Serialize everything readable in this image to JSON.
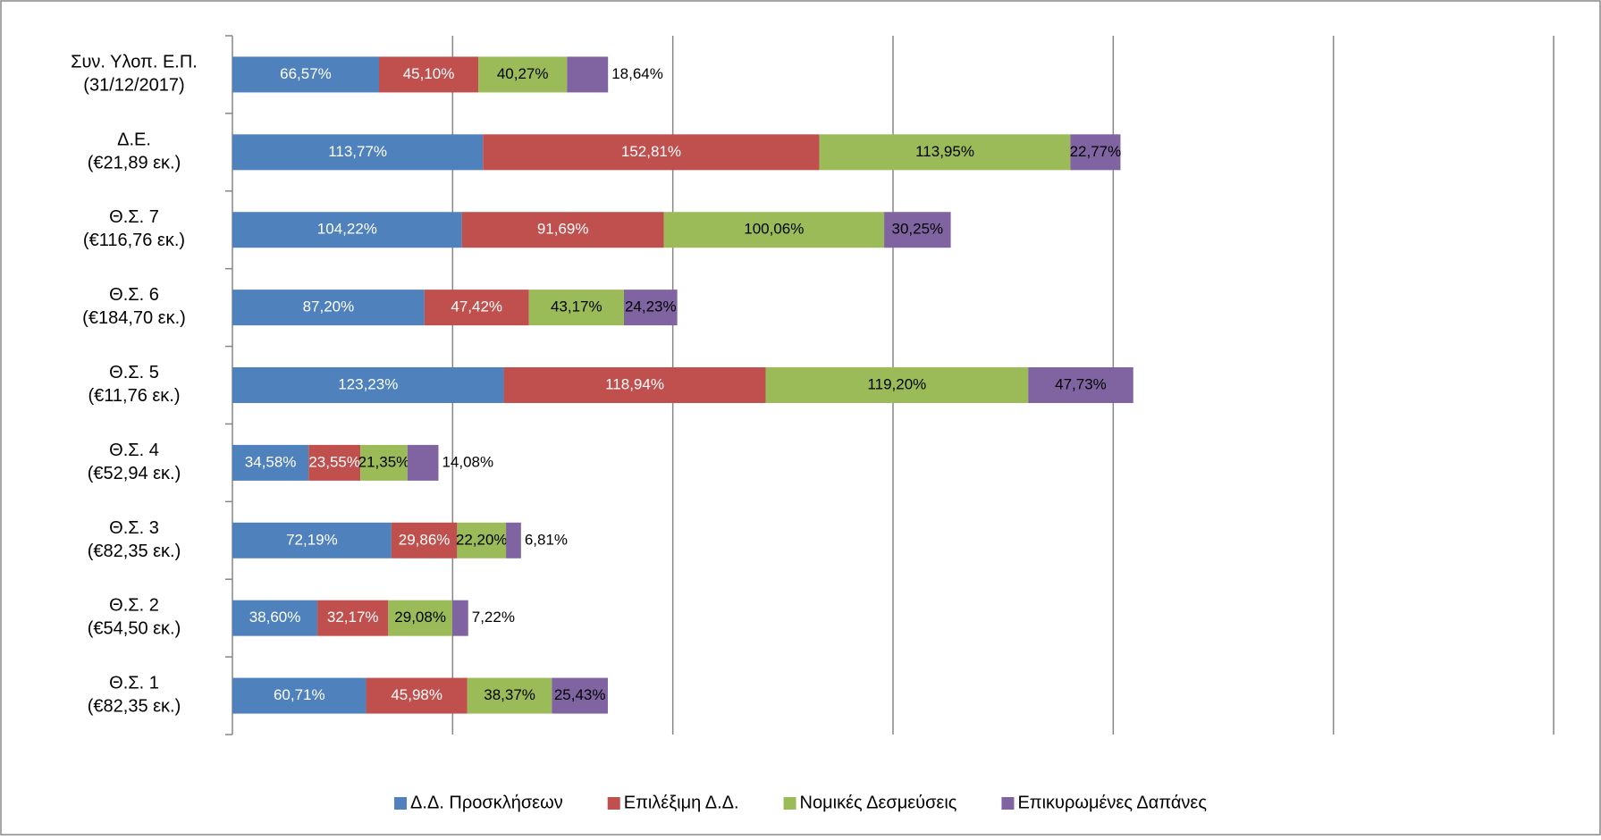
{
  "chart_data": {
    "type": "stacked_barh",
    "categories": [
      "Συν. Υλοπ. Ε.Π.\n(31/12/2017)",
      "Δ.Ε.\n(€21,89 εκ.)",
      "Θ.Σ. 7\n(€116,76 εκ.)",
      "Θ.Σ. 6\n(€184,70 εκ.)",
      "Θ.Σ. 5\n(€11,76 εκ.)",
      "Θ.Σ. 4\n(€52,94 εκ.)",
      "Θ.Σ. 3\n(€82,35 εκ.)",
      "Θ.Σ. 2\n(€54,50 εκ.)",
      "Θ.Σ. 1\n(€82,35 εκ.)"
    ],
    "series": [
      {
        "name": "Δ.Δ. Προσκλήσεων",
        "color": "#4f81bd",
        "label_color": "#ffffff",
        "values": [
          66.57,
          113.77,
          104.22,
          87.2,
          123.23,
          34.58,
          72.19,
          38.6,
          60.71
        ],
        "value_labels": [
          "66,57%",
          "113,77%",
          "104,22%",
          "87,20%",
          "123,23%",
          "34,58%",
          "72,19%",
          "38,60%",
          "60,71%"
        ]
      },
      {
        "name": "Επιλέξιμη Δ.Δ.",
        "color": "#c0504d",
        "label_color": "#ffffff",
        "values": [
          45.1,
          152.81,
          91.69,
          47.42,
          118.94,
          23.55,
          29.86,
          32.17,
          45.98
        ],
        "value_labels": [
          "45,10%",
          "152,81%",
          "91,69%",
          "47,42%",
          "118,94%",
          "23,55%",
          "29,86%",
          "32,17%",
          "45,98%"
        ]
      },
      {
        "name": "Νομικές Δεσμεύσεις",
        "color": "#9bbb59",
        "label_color": "#000000",
        "values": [
          40.27,
          113.95,
          100.06,
          43.17,
          119.2,
          21.35,
          22.2,
          29.08,
          38.37
        ],
        "value_labels": [
          "40,27%",
          "113,95%",
          "100,06%",
          "43,17%",
          "119,20%",
          "21,35%",
          "22,20%",
          "29,08%",
          "38,37%"
        ]
      },
      {
        "name": "Επικυρωμένες Δαπάνες",
        "color": "#8064a2",
        "label_color": "#000000",
        "values": [
          18.64,
          22.77,
          30.25,
          24.23,
          47.73,
          14.08,
          6.81,
          7.22,
          25.43
        ],
        "value_labels": [
          "18,64%",
          "22,77%",
          "30,25%",
          "24,23%",
          "47,73%",
          "14,08%",
          "6,81%",
          "7,22%",
          "25,43%"
        ]
      }
    ],
    "xlim": [
      0,
      600
    ],
    "xticks": [
      0,
      100,
      200,
      300,
      400,
      500,
      600
    ],
    "grid": true,
    "legend": "bottom"
  }
}
